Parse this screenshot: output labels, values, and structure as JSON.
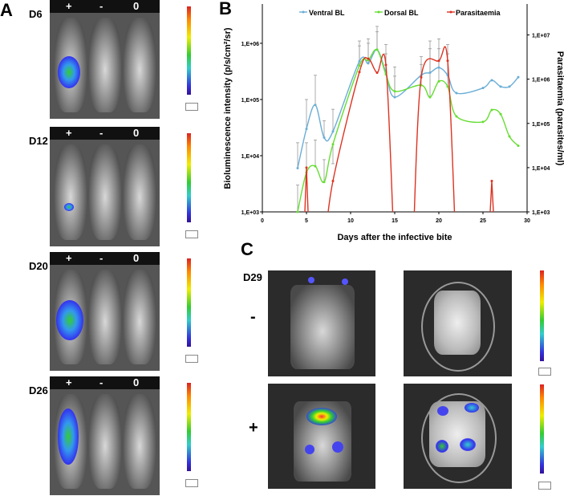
{
  "panels": {
    "A": {
      "label": "A",
      "days": [
        {
          "label": "D6",
          "mice": [
            "+",
            "-",
            "0"
          ]
        },
        {
          "label": "D12",
          "mice": [
            "+",
            "-",
            "0"
          ]
        },
        {
          "label": "D20",
          "mice": [
            "+",
            "-",
            "0"
          ]
        },
        {
          "label": "D26",
          "mice": [
            "+",
            "-",
            "0"
          ]
        }
      ]
    },
    "B": {
      "label": "B"
    },
    "C": {
      "label": "C",
      "day": "D29",
      "rows": [
        {
          "label": "-"
        },
        {
          "label": "+"
        }
      ],
      "dish_label": "-"
    }
  },
  "colors": {
    "ventral": "#6aaed6",
    "dorsal": "#66dd33",
    "parasitaemia": "#dd3322",
    "error_bars": "#999999"
  },
  "chart_data": {
    "type": "line",
    "xlabel": "Days after the infective bite",
    "ylabel": "Bioluminescence intensity (p/s/cm²/sr)",
    "y2label": "Parasitaemia (parasites/ml)",
    "xlim": [
      0,
      30
    ],
    "xticks": [
      "0",
      "5",
      "10",
      "15",
      "20",
      "25",
      "30"
    ],
    "ylim": [
      1000,
      5000000
    ],
    "yscale": "log",
    "yticks": [
      "1,E+03",
      "1,E+04",
      "1,E+05",
      "1,E+06"
    ],
    "y2lim": [
      1000,
      50000000
    ],
    "y2scale": "log",
    "y2ticks": [
      "1,E+03",
      "1,E+04",
      "1,E+05",
      "1,E+06",
      "1,E+07"
    ],
    "legend_position": "top",
    "series": [
      {
        "name": "Ventral BL",
        "axis": "left",
        "x": [
          4,
          5,
          6,
          7,
          8,
          11,
          12,
          13,
          14,
          15,
          18,
          19,
          20,
          21,
          22,
          25,
          26,
          27,
          28,
          29
        ],
        "y": [
          6000,
          30000,
          80000,
          21000,
          27000,
          480000,
          440000,
          770000,
          300000,
          110000,
          270000,
          300000,
          370000,
          270000,
          130000,
          160000,
          220000,
          170000,
          170000,
          250000
        ],
        "error_upper": [
          17000,
          100000,
          270000,
          42000,
          67000,
          1100000,
          1200000,
          2000000,
          950000,
          380000,
          580000,
          1100000,
          1200000,
          950000,
          null,
          null,
          null,
          null,
          null,
          null
        ]
      },
      {
        "name": "Dorsal BL",
        "axis": "left",
        "x": [
          4,
          5,
          6,
          7,
          8,
          11,
          12,
          13,
          14,
          15,
          18,
          19,
          20,
          21,
          22,
          25,
          26,
          27,
          28,
          29
        ],
        "y": [
          1000,
          5000,
          6500,
          3400,
          16000,
          400000,
          500000,
          770000,
          280000,
          140000,
          180000,
          110000,
          210000,
          170000,
          50000,
          40000,
          65000,
          55000,
          22000,
          15000
        ],
        "error_upper": [
          3000,
          17000,
          19000,
          8500,
          7200,
          900000,
          1000000,
          1600000,
          650000,
          260000,
          420000,
          800000,
          800000,
          650000,
          null,
          null,
          null,
          null,
          null,
          null
        ]
      },
      {
        "name": "Parasitaemia",
        "axis": "right",
        "segments": [
          {
            "x": [
              5
            ],
            "y": [
              10000
            ]
          },
          {
            "x": [
              8,
              11,
              12,
              13,
              14
            ],
            "y": [
              5000,
              1450000,
              2900000,
              1400000,
              2100000
            ]
          },
          {
            "x": [
              18,
              20,
              21
            ],
            "y": [
              1100000,
              2600000,
              2600000
            ]
          },
          {
            "x": [
              26
            ],
            "y": [
              5000
            ]
          }
        ]
      }
    ]
  }
}
